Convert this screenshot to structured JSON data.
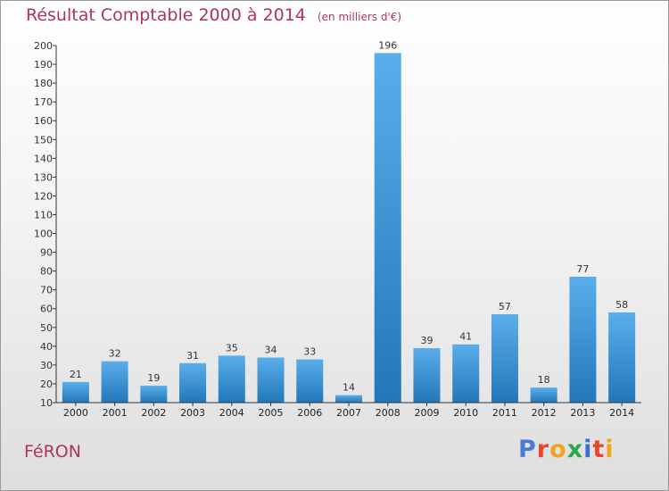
{
  "chart_data": {
    "type": "bar",
    "title": "Résultat Comptable 2000 à 2014",
    "subtitle": "(en milliers d'€)",
    "categories": [
      "2000",
      "2001",
      "2002",
      "2003",
      "2004",
      "2005",
      "2006",
      "2007",
      "2008",
      "2009",
      "2010",
      "2011",
      "2012",
      "2013",
      "2014"
    ],
    "values": [
      21,
      32,
      19,
      31,
      35,
      34,
      33,
      14,
      196,
      39,
      41,
      57,
      18,
      77,
      58
    ],
    "yticks": [
      10,
      20,
      30,
      40,
      50,
      60,
      70,
      80,
      90,
      100,
      110,
      120,
      130,
      140,
      150,
      160,
      170,
      180,
      190,
      200
    ],
    "ylim": [
      10,
      200
    ],
    "xlabel": "",
    "ylabel": "",
    "grid": false
  },
  "footer": {
    "place": "FéRON",
    "logo_letters": [
      "P",
      "r",
      "o",
      "x",
      "i",
      "t",
      "i"
    ],
    "logo_colors": [
      "#4a7bd4",
      "#e9452c",
      "#f2a51c",
      "#2ea84a",
      "#3a6fd0",
      "#e9452c",
      "#f2a51c"
    ]
  },
  "colors": {
    "bar_top": "#5aaeea",
    "bar_bottom": "#2277bb",
    "axis": "#333333",
    "title": "#b0345a"
  }
}
